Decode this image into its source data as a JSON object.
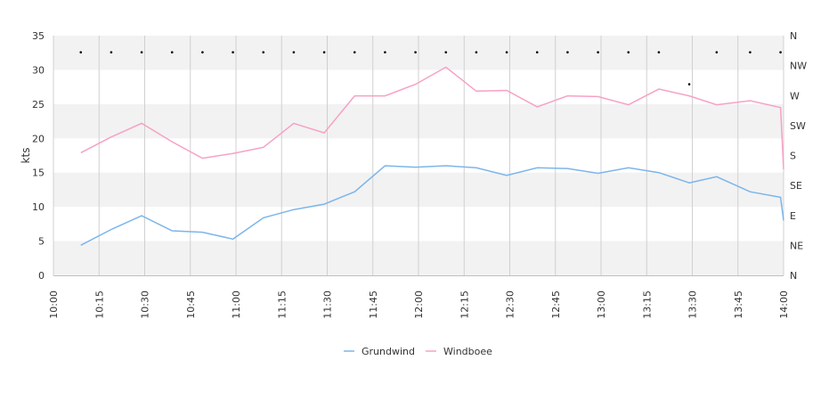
{
  "chart_data": {
    "type": "line",
    "ylabel": "kts",
    "ylim": [
      0,
      35
    ],
    "y_ticks": [
      "0",
      "5",
      "10",
      "15",
      "20",
      "25",
      "30",
      "35"
    ],
    "grid": true,
    "legend_position": "bottom-center",
    "x_ticks": [
      "10:00",
      "10:15",
      "10:30",
      "10:45",
      "11:00",
      "11:15",
      "11:30",
      "11:45",
      "12:00",
      "12:15",
      "12:30",
      "12:45",
      "13:00",
      "13:15",
      "13:30",
      "13:45",
      "14:00"
    ],
    "x_tick_minutes": [
      600,
      615,
      630,
      645,
      660,
      675,
      690,
      705,
      720,
      735,
      750,
      765,
      780,
      795,
      810,
      825,
      840
    ],
    "xlim_minutes": [
      600,
      840
    ],
    "direction_axis": {
      "labels": [
        "N",
        "NE",
        "E",
        "SE",
        "S",
        "SW",
        "W",
        "NW",
        "N"
      ],
      "range_degrees": [
        0,
        360
      ]
    },
    "series": [
      {
        "name": "Grundwind",
        "color": "#7cb5ec",
        "x_minutes": [
          609,
          619,
          629,
          639,
          649,
          659,
          669,
          679,
          689,
          699,
          709,
          719,
          729,
          739,
          749,
          759,
          769,
          779,
          789,
          799,
          809,
          818,
          829,
          839,
          840
        ],
        "values": [
          4.4,
          6.7,
          8.7,
          6.5,
          6.3,
          5.3,
          8.4,
          9.6,
          10.4,
          12.2,
          16.0,
          15.8,
          16.0,
          15.7,
          14.6,
          15.7,
          15.6,
          14.9,
          15.7,
          15.0,
          13.5,
          14.4,
          12.2,
          11.4,
          8.0
        ]
      },
      {
        "name": "Windboee",
        "color": "#f7a1c4",
        "x_minutes": [
          609,
          619,
          629,
          639,
          649,
          659,
          669,
          679,
          689,
          699,
          709,
          719,
          729,
          739,
          749,
          759,
          769,
          779,
          789,
          799,
          809,
          818,
          829,
          839,
          840
        ],
        "values": [
          17.9,
          20.2,
          22.2,
          19.5,
          17.1,
          17.8,
          18.7,
          22.2,
          20.8,
          26.2,
          26.2,
          27.9,
          30.4,
          26.9,
          27.0,
          24.6,
          26.2,
          26.1,
          24.9,
          27.2,
          26.2,
          24.9,
          25.5,
          24.5,
          15.5
        ]
      }
    ],
    "direction_points": {
      "x_minutes": [
        609,
        619,
        629,
        639,
        649,
        659,
        669,
        679,
        689,
        699,
        709,
        719,
        729,
        739,
        749,
        759,
        769,
        779,
        789,
        799,
        809,
        818,
        829,
        839
      ],
      "degrees": [
        335,
        335,
        335,
        335,
        335,
        335,
        335,
        335,
        335,
        335,
        335,
        335,
        335,
        335,
        335,
        335,
        335,
        335,
        335,
        335,
        287,
        335,
        335,
        335
      ]
    }
  }
}
